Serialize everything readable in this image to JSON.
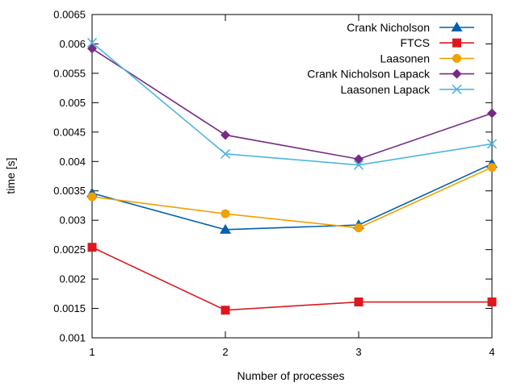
{
  "chart_data": {
    "type": "line",
    "title": "",
    "xlabel": "Number of processes",
    "ylabel": "time [s]",
    "x": [
      1,
      2,
      3,
      4
    ],
    "xlim": [
      1,
      4
    ],
    "ylim": [
      0.001,
      0.0065
    ],
    "xticks": [
      "1",
      "2",
      "3",
      "4"
    ],
    "yticks": [
      "0.001",
      "0.0015",
      "0.002",
      "0.0025",
      "0.003",
      "0.0035",
      "0.004",
      "0.0045",
      "0.005",
      "0.0055",
      "0.006",
      "0.0065"
    ],
    "grid": false,
    "legend_position": "top-right",
    "series": [
      {
        "name": "Crank Nicholson",
        "values": [
          0.00346,
          0.00284,
          0.00292,
          0.00396
        ],
        "color": "#0060ad",
        "marker": "triangle"
      },
      {
        "name": "FTCS",
        "values": [
          0.00254,
          0.00147,
          0.00161,
          0.00161
        ],
        "color": "#dd181f",
        "marker": "square"
      },
      {
        "name": "Laasonen",
        "values": [
          0.0034,
          0.00311,
          0.00287,
          0.0039
        ],
        "color": "#f0a000",
        "marker": "circle"
      },
      {
        "name": "Crank Nicholson Lapack",
        "values": [
          0.00592,
          0.00445,
          0.00404,
          0.00482
        ],
        "color": "#762a83",
        "marker": "diamond"
      },
      {
        "name": "Laasonen Lapack",
        "values": [
          0.00602,
          0.00413,
          0.00394,
          0.0043
        ],
        "color": "#4eb5e0",
        "marker": "x"
      }
    ]
  }
}
